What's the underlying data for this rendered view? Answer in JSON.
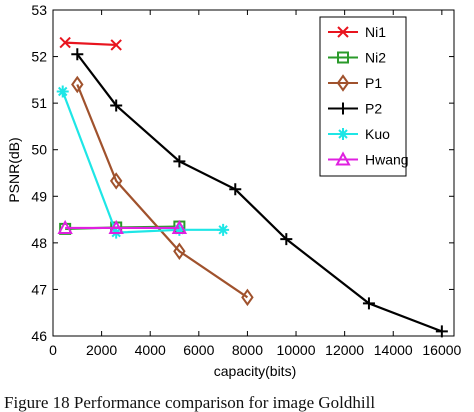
{
  "caption": "Figure 18 Performance comparison for image Goldhill",
  "chart_data": {
    "type": "line",
    "xlabel": "capacity(bits)",
    "ylabel": "PSNR(dB)",
    "xlim": [
      0,
      16500
    ],
    "ylim": [
      46,
      53
    ],
    "xticks": [
      0,
      2000,
      4000,
      6000,
      8000,
      10000,
      12000,
      14000,
      16000
    ],
    "yticks": [
      46,
      47,
      48,
      49,
      50,
      51,
      52,
      53
    ],
    "grid": false,
    "legend_position": "top-right",
    "series": [
      {
        "name": "Ni1",
        "color": "#e8141e",
        "marker": "x",
        "x": [
          500,
          2600
        ],
        "y": [
          52.3,
          52.25
        ]
      },
      {
        "name": "Ni2",
        "color": "#2a9a2a",
        "marker": "square",
        "x": [
          500,
          2600,
          5200
        ],
        "y": [
          48.3,
          48.33,
          48.35
        ]
      },
      {
        "name": "P1",
        "color": "#a0522d",
        "marker": "diamond",
        "x": [
          1000,
          2600,
          5200,
          8000
        ],
        "y": [
          51.4,
          49.33,
          47.82,
          46.83
        ]
      },
      {
        "name": "P2",
        "color": "#000000",
        "marker": "plus",
        "x": [
          1000,
          2600,
          5200,
          7500,
          9600,
          13000,
          16000
        ],
        "y": [
          52.05,
          50.95,
          49.75,
          49.15,
          48.08,
          46.7,
          46.1
        ]
      },
      {
        "name": "Kuo",
        "color": "#1ee6e6",
        "marker": "asterisk",
        "x": [
          400,
          2600,
          5200,
          7000
        ],
        "y": [
          51.25,
          48.22,
          48.28,
          48.28
        ]
      },
      {
        "name": "Hwang",
        "color": "#e020e0",
        "marker": "triangle",
        "x": [
          500,
          2600,
          5200
        ],
        "y": [
          48.32,
          48.32,
          48.32
        ]
      }
    ]
  }
}
